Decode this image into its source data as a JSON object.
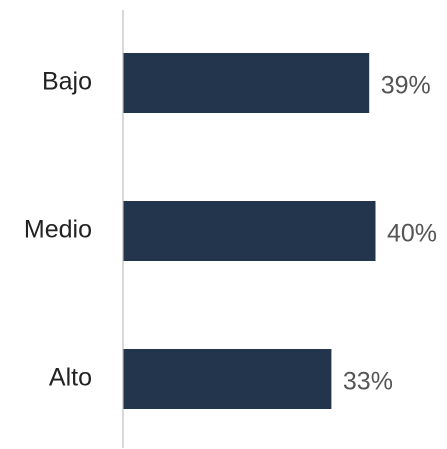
{
  "chart_data": {
    "type": "bar",
    "orientation": "horizontal",
    "categories": [
      "Bajo",
      "Medio",
      "Alto"
    ],
    "values": [
      39,
      40,
      33
    ],
    "value_labels": [
      "39%",
      "40%",
      "33%"
    ],
    "unit": "%",
    "xlim": [
      0,
      50
    ],
    "grid": false,
    "legend": "none",
    "bar_color": "#22354d",
    "axis_color": "#cccccc",
    "title": "",
    "xlabel": "",
    "ylabel": ""
  }
}
